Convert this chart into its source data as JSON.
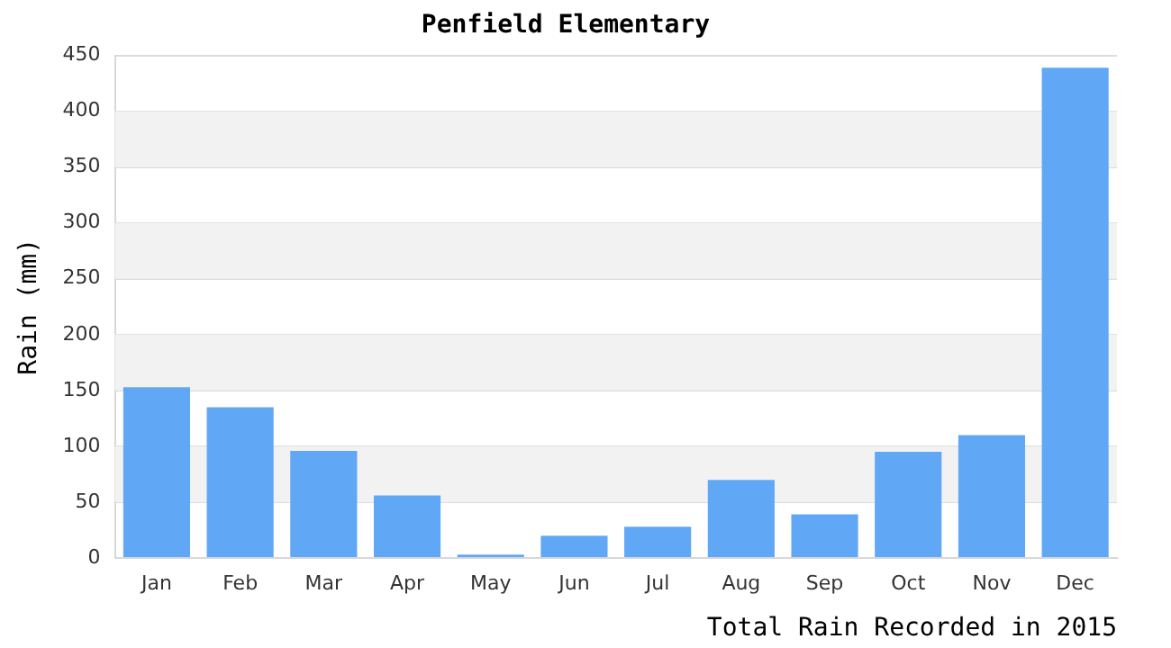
{
  "chart_data": {
    "type": "bar",
    "title": "Penfield Elementary",
    "xlabel": "Total Rain Recorded in 2015",
    "ylabel": "Rain (mm)",
    "categories": [
      "Jan",
      "Feb",
      "Mar",
      "Apr",
      "May",
      "Jun",
      "Jul",
      "Aug",
      "Sep",
      "Oct",
      "Nov",
      "Dec"
    ],
    "values": [
      153,
      135,
      96,
      56,
      3,
      20,
      28,
      70,
      39,
      95,
      110,
      439
    ],
    "color": "#60a8f5",
    "ylim": [
      0,
      450
    ],
    "yticks": [
      0,
      50,
      100,
      150,
      200,
      250,
      300,
      350,
      400,
      450
    ],
    "grid": "y",
    "legend": false
  }
}
